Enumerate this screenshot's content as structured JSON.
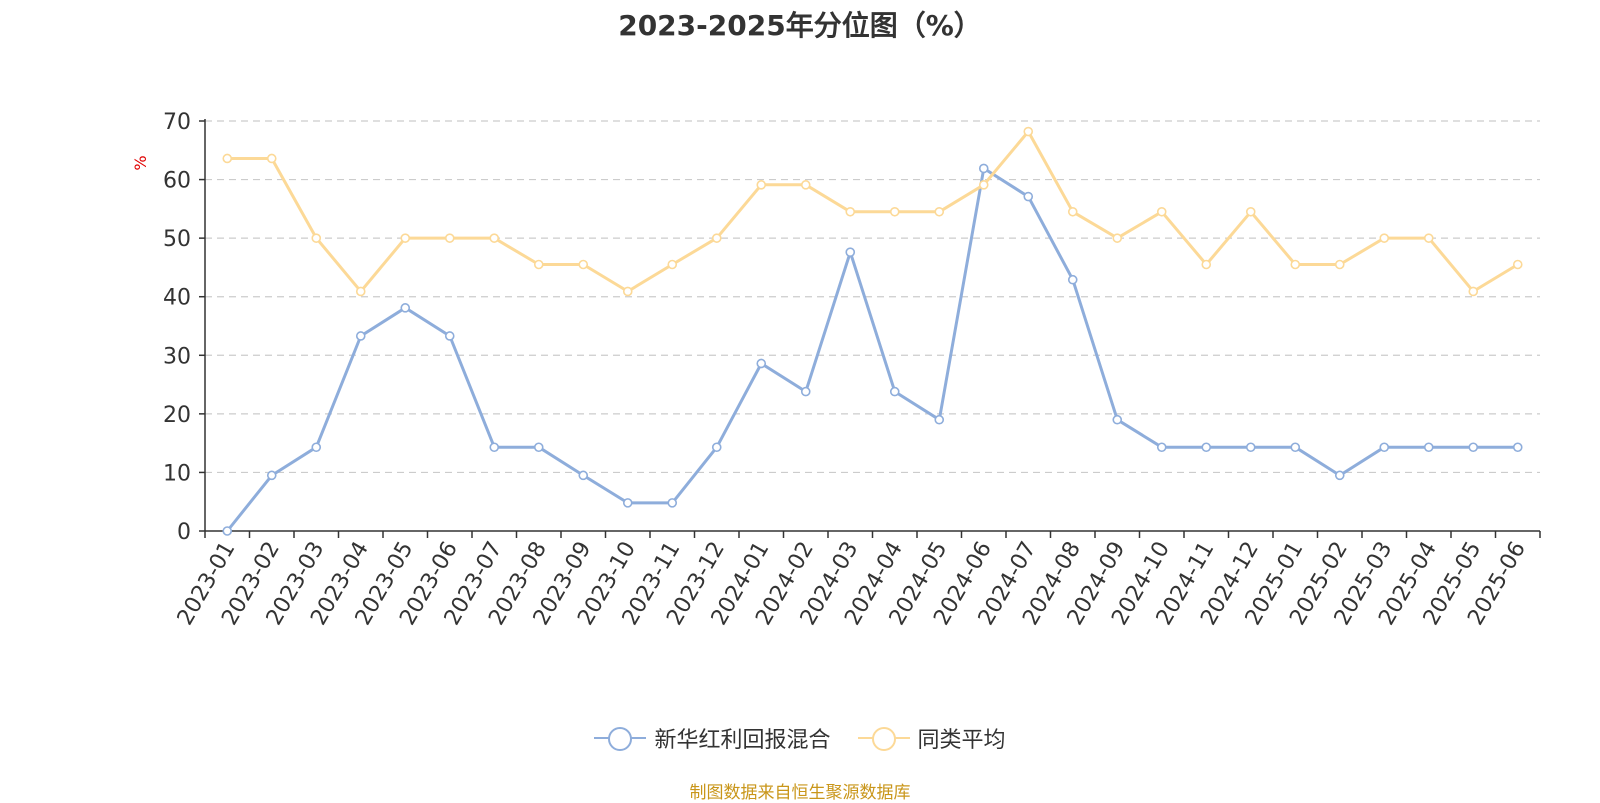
{
  "chart_data": {
    "type": "line",
    "title": "2023-2025年分位图（%）",
    "ylabel": "%",
    "xlabel": "",
    "ylim": [
      0,
      70
    ],
    "yticks": [
      0,
      10,
      20,
      30,
      40,
      50,
      60,
      70
    ],
    "grid": "horizontal dashed",
    "legend_position": "bottom",
    "categories": [
      "2023-01",
      "2023-02",
      "2023-03",
      "2023-04",
      "2023-05",
      "2023-06",
      "2023-07",
      "2023-08",
      "2023-09",
      "2023-10",
      "2023-11",
      "2023-12",
      "2024-01",
      "2024-02",
      "2024-03",
      "2024-04",
      "2024-05",
      "2024-06",
      "2024-07",
      "2024-08",
      "2024-09",
      "2024-10",
      "2024-11",
      "2024-12",
      "2025-01",
      "2025-02",
      "2025-03",
      "2025-04",
      "2025-05",
      "2025-06"
    ],
    "series": [
      {
        "name": "新华红利回报混合",
        "color": "#8eaddb",
        "values": [
          0,
          9.5,
          14.3,
          33.3,
          38.1,
          33.3,
          14.3,
          14.3,
          9.5,
          4.8,
          4.8,
          14.3,
          28.6,
          23.8,
          47.6,
          23.8,
          19.0,
          61.9,
          57.1,
          42.9,
          19.0,
          14.3,
          14.3,
          14.3,
          14.3,
          9.5,
          14.3,
          14.3,
          14.3,
          14.3
        ]
      },
      {
        "name": "同类平均",
        "color": "#fcd997",
        "values": [
          63.6,
          63.6,
          50.0,
          40.9,
          50.0,
          50.0,
          50.0,
          45.5,
          45.5,
          40.9,
          45.5,
          50.0,
          59.1,
          59.1,
          54.5,
          54.5,
          54.5,
          59.1,
          68.2,
          54.5,
          50.0,
          54.5,
          45.5,
          54.5,
          45.5,
          45.5,
          50.0,
          50.0,
          40.9,
          45.5
        ]
      }
    ]
  },
  "source_note": "制图数据来自恒生聚源数据库"
}
